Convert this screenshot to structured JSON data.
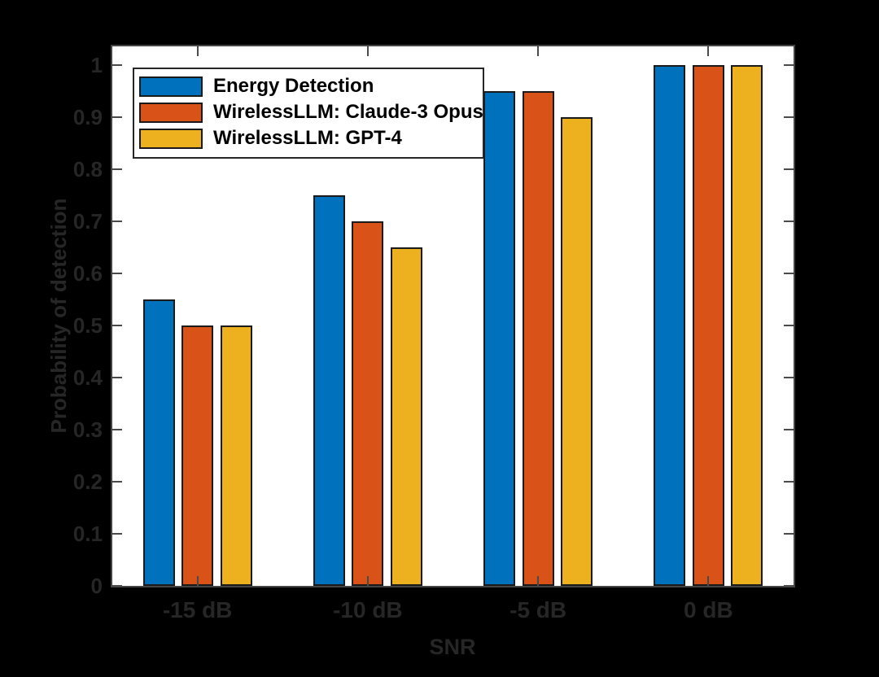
{
  "chart_data": {
    "type": "bar",
    "title": "",
    "xlabel": "SNR",
    "ylabel": "Probability of detection",
    "categories": [
      "-15 dB",
      "-10 dB",
      "-5 dB",
      "0 dB"
    ],
    "series": [
      {
        "name": "Energy Detection",
        "color": "#0072BD",
        "values": [
          0.55,
          0.75,
          0.95,
          1.0
        ]
      },
      {
        "name": "WirelessLLM: Claude-3 Opus",
        "color": "#D95319",
        "values": [
          0.5,
          0.7,
          0.95,
          1.0
        ]
      },
      {
        "name": "WirelessLLM: GPT-4",
        "color": "#EDB120",
        "values": [
          0.5,
          0.65,
          0.9,
          1.0
        ]
      }
    ],
    "yticks": [
      "0",
      "0.1",
      "0.2",
      "0.3",
      "0.4",
      "0.5",
      "0.6",
      "0.7",
      "0.8",
      "0.9",
      "1"
    ],
    "ylim": [
      0,
      1.036
    ],
    "grid": false,
    "legend_position": "top-left-inside",
    "plot_background": "#ffffff",
    "figure_background": "#000000",
    "axis_color": "#454545",
    "axis_text_color": "#262626",
    "bar_edge_color": "#1a1a1a"
  }
}
